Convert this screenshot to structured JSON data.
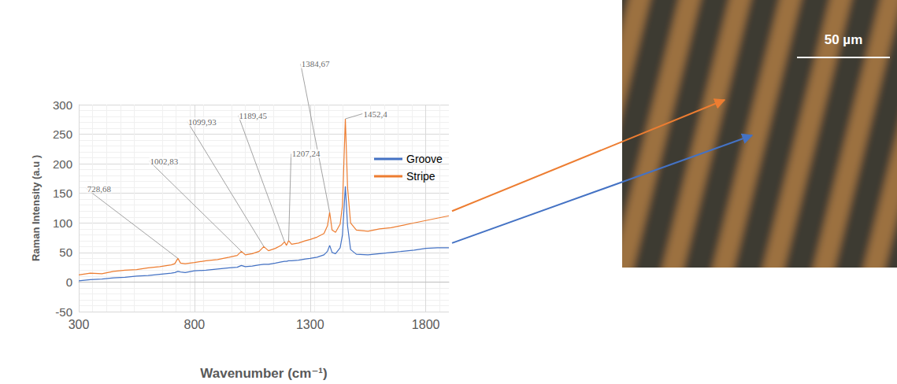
{
  "chart_data": {
    "type": "line",
    "x_label": "Wavenumber (cm⁻¹)",
    "y_label": "Raman Intensity (a.u )",
    "x": [
      300,
      350,
      400,
      450,
      500,
      550,
      600,
      650,
      700,
      715,
      728.68,
      740,
      760,
      800,
      850,
      900,
      950,
      985,
      1002.83,
      1020,
      1050,
      1080,
      1099.93,
      1120,
      1150,
      1175,
      1189.45,
      1198,
      1207.24,
      1220,
      1250,
      1280,
      1300,
      1330,
      1360,
      1375,
      1384.67,
      1395,
      1410,
      1430,
      1440,
      1452.4,
      1462,
      1475,
      1500,
      1550,
      1600,
      1650,
      1700,
      1750,
      1800,
      1850,
      1900
    ],
    "series": [
      {
        "name": "Groove",
        "color": "#4472C4",
        "values": [
          2,
          4,
          5,
          7,
          8,
          10,
          11,
          13,
          15,
          16,
          18,
          17,
          16,
          19,
          20,
          22,
          24,
          25,
          28,
          26,
          27,
          29,
          30,
          30,
          32,
          34,
          35,
          35,
          36,
          36,
          37,
          39,
          40,
          42,
          46,
          52,
          62,
          50,
          48,
          58,
          80,
          162,
          95,
          55,
          47,
          46,
          48,
          50,
          52,
          54,
          57,
          58,
          58
        ]
      },
      {
        "name": "Stripe",
        "color": "#ED7D31",
        "values": [
          12,
          15,
          14,
          18,
          20,
          21,
          24,
          26,
          29,
          31,
          40,
          32,
          31,
          33,
          36,
          38,
          42,
          45,
          52,
          46,
          48,
          52,
          60,
          53,
          57,
          62,
          68,
          62,
          70,
          64,
          66,
          70,
          72,
          76,
          82,
          95,
          118,
          88,
          84,
          98,
          130,
          276,
          160,
          100,
          88,
          86,
          90,
          92,
          96,
          100,
          104,
          108,
          112
        ]
      }
    ],
    "xlim": [
      300,
      1900
    ],
    "xticks": [
      300,
      800,
      1300,
      1800
    ],
    "ylim": [
      -50,
      300
    ],
    "yticks": [
      -50,
      0,
      50,
      100,
      150,
      200,
      250,
      300
    ],
    "grid": true,
    "legend": "right",
    "annotations": [
      {
        "label": "1452,4",
        "x": 1452.4,
        "y": 276
      },
      {
        "label": "1384,67",
        "x": 1384.67,
        "y": 118
      },
      {
        "label": "1189,45",
        "x": 1189.45,
        "y": 68
      },
      {
        "label": "1207,24",
        "x": 1207.24,
        "y": 70
      },
      {
        "label": "1099,93",
        "x": 1099.93,
        "y": 60
      },
      {
        "label": "1002,83",
        "x": 1002.83,
        "y": 52
      },
      {
        "label": "728,68",
        "x": 728.68,
        "y": 40
      }
    ]
  },
  "micrograph": {
    "scale_bar": "50 µm"
  }
}
